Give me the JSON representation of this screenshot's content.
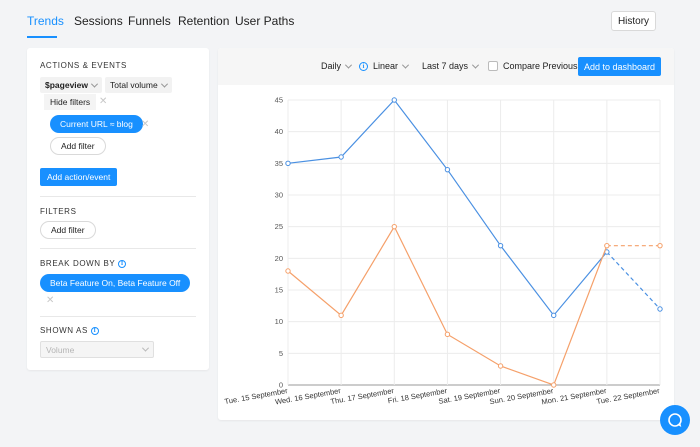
{
  "tabs": [
    {
      "label": "Trends",
      "active": true
    },
    {
      "label": "Sessions",
      "active": false
    },
    {
      "label": "Funnels",
      "active": false
    },
    {
      "label": "Retention",
      "active": false
    },
    {
      "label": "User Paths",
      "active": false
    }
  ],
  "history_label": "History",
  "left": {
    "actions_title": "ACTIONS & EVENTS",
    "event_select": "$pageview",
    "math_select": "Total volume",
    "hide_filters": "Hide filters",
    "filter_pill": "Current URL ≈ blog",
    "add_filter": "Add filter",
    "add_action": "Add action/event",
    "filters_title": "FILTERS",
    "filters_add": "Add filter",
    "breakdown_title": "BREAK DOWN BY",
    "breakdown_pill": "Beta Feature On, Beta Feature Off",
    "shown_as_title": "SHOWN AS",
    "shown_as_value": "Volume"
  },
  "toolbar": {
    "interval": "Daily",
    "scale": "Linear",
    "date_range": "Last 7 days",
    "compare_label": "Compare Previous",
    "compare_checked": false,
    "add_dashboard": "Add to dashboard"
  },
  "colors": {
    "accent": "#1890ff",
    "series_blue": "#4a90e2",
    "series_orange": "#f5a06a"
  },
  "chart_data": {
    "type": "line",
    "categories": [
      "Tue. 15 September",
      "Wed. 16 September",
      "Thu. 17 September",
      "Fri. 18 September",
      "Sat. 19 September",
      "Sun. 20 September",
      "Mon. 21 September",
      "Tue. 22 September"
    ],
    "series": [
      {
        "values": [
          35,
          36,
          45,
          34,
          22,
          11,
          21,
          12
        ],
        "color": "#4a90e2",
        "dashed_from_index": 6
      },
      {
        "values": [
          18,
          11,
          25,
          8,
          3,
          0,
          22,
          22
        ],
        "color": "#f5a06a",
        "dashed_from_index": 6
      }
    ],
    "yticks": [
      "0",
      "5",
      "10",
      "15",
      "20",
      "25",
      "30",
      "35",
      "40",
      "45"
    ],
    "ylim": [
      0,
      45
    ],
    "grid": true
  }
}
